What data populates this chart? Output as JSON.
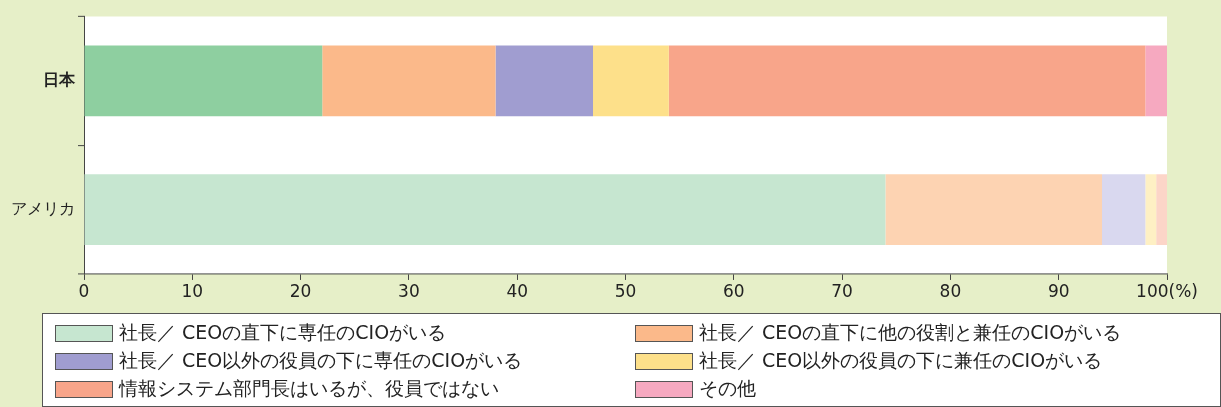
{
  "chart_data": {
    "type": "bar",
    "orientation": "horizontal",
    "stacked": true,
    "categories": [
      "日本",
      "アメリカ"
    ],
    "series": [
      {
        "name": "社長／ CEOの直下に専任のCIOがいる",
        "color": "#c6e6d0",
        "colors": [
          "#8ecfa0",
          "#c6e6d0"
        ],
        "values": [
          22,
          74
        ]
      },
      {
        "name": "社長／ CEOの直下に他の役割と兼任のCIOがいる",
        "color": "#fbb98a",
        "colors": [
          "#fbb98a",
          "#fdd3b2"
        ],
        "values": [
          16,
          20
        ]
      },
      {
        "name": "社長／ CEO以外の役員の下に専任のCIOがいる",
        "color": "#a09dd0",
        "colors": [
          "#a09dd0",
          "#d9d8ef"
        ],
        "values": [
          9,
          4
        ]
      },
      {
        "name": "社長／ CEO以外の役員の下に兼任のCIOがいる",
        "color": "#fde08a",
        "colors": [
          "#fde08a",
          "#fef0c4"
        ],
        "values": [
          7,
          1
        ]
      },
      {
        "name": "情報システム部門長はいるが、役員ではない",
        "color": "#f8a58a",
        "colors": [
          "#f8a58a",
          "#fcd5c8"
        ],
        "values": [
          44,
          1
        ]
      },
      {
        "name": "その他",
        "color": "#f6a9c0",
        "colors": [
          "#f6a9c0",
          "#fbd3df"
        ],
        "values": [
          2,
          0
        ]
      }
    ],
    "xlim": [
      0,
      100
    ],
    "xticks": [
      0,
      10,
      20,
      30,
      40,
      50,
      60,
      70,
      80,
      90,
      {
        "value": 100,
        "label": "100(%)"
      }
    ],
    "grid": false,
    "legend": "bottom"
  }
}
